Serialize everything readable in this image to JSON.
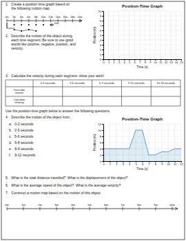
{
  "chart_data": [
    {
      "type": "number_line",
      "categories": [
        "0m",
        "2m",
        "4m",
        "6m",
        "8m",
        "10m",
        "12m",
        "14m",
        "16m",
        "18m",
        "20m"
      ],
      "annotations": [
        "1.   Create a position time graph based on\n      the following motion map.",
        "10m",
        "2.   Describe the motion of the object during\n      each time segment. Be sure to use good\n      words like positive, negative, position, and\n      velocity."
      ]
    },
    {
      "type": "line",
      "title": "Position-Time Graph",
      "xlabel": "Time (s)",
      "ylabel": "Position (m)",
      "xlim": [
        0,
        15
      ],
      "ylim": [
        0,
        10
      ],
      "xticks": [
        0,
        1,
        2,
        3,
        4,
        5,
        6,
        7,
        8,
        9,
        10,
        11,
        12,
        13,
        14,
        15
      ],
      "yticks": [
        0,
        1,
        2,
        3,
        4,
        5,
        6,
        7,
        8,
        9,
        10
      ],
      "grid": true
    },
    {
      "type": "table",
      "categories": [
        "0-3 seconds",
        "3-6 seconds",
        "6-9 seconds",
        "9-10 seconds",
        "10-14 seconds"
      ],
      "rows": [
        "Describe\nmotion",
        "Calculate\nvelocity"
      ],
      "annotations": [
        "3.   Calculate the velocity during each segment- show your work!"
      ]
    },
    {
      "type": "area",
      "title": "Position-Time Graph",
      "xlabel": "Time (s)",
      "ylabel": "Position (m)",
      "x": [
        0,
        2,
        3,
        4,
        5,
        6,
        7,
        8,
        9,
        10,
        11,
        12
      ],
      "values": [
        4,
        4,
        4,
        4,
        10,
        10,
        2,
        2,
        3,
        3,
        4,
        4
      ],
      "color": "#5a9fc8",
      "xlim": [
        0,
        12
      ],
      "ylim": [
        0,
        12
      ],
      "xticks": [
        0,
        1,
        2,
        3,
        4,
        5,
        6,
        7,
        8,
        9,
        10,
        11,
        12
      ],
      "yticks": [
        0,
        2,
        4,
        6,
        8,
        10,
        12
      ],
      "grid": true,
      "annotations": [
        "Use the position-time graph below to answer the following questions.",
        "4.   Describe the motion of the object from...",
        "a.   0-2 seconds",
        "b.   2-5 seconds",
        "c.   5-6 seconds",
        "d.   6-8 seconds",
        "e.   8-9 seconds",
        "f.    9-12 seconds"
      ]
    },
    {
      "type": "number_line",
      "categories": [
        "0m",
        "1m",
        "2m",
        "3m",
        "4m",
        "5m",
        "6m",
        "7m",
        "8m",
        "9m",
        "10m"
      ],
      "annotations": [
        "5.   What is the total distance travelled?  What is the displacement of the object?",
        "6.   What is the average speed of the object?  What is the average velocity?",
        "7.   Construct a motion map based on the motion of this object."
      ]
    }
  ]
}
